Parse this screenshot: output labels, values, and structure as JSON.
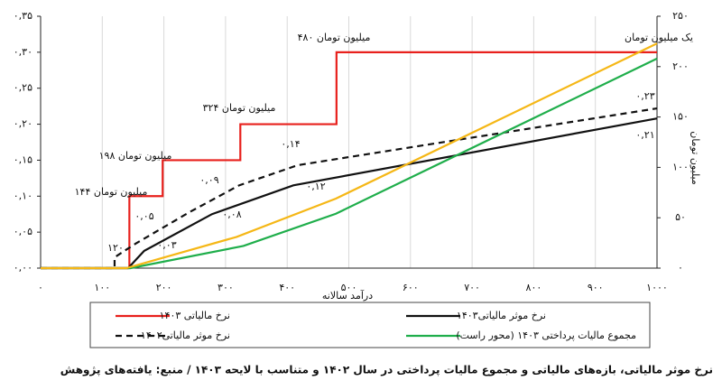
{
  "chart_data": {
    "type": "line",
    "xlabel": "درآمد سالانه",
    "y2label": "میلیون تومان",
    "caption": "نرخ موثر مالیاتی، بازه‌های مالیاتی و مجموع مالیات پرداختی در سال ۱۴۰۲ و متناسب با لایحه ۱۴۰۳ / منبع: یافته‌های پژوهش",
    "xlim": [
      0,
      1000
    ],
    "xticks": [
      {
        "value": 0,
        "label": "۰"
      },
      {
        "value": 100,
        "label": "۱۰۰"
      },
      {
        "value": 200,
        "label": "۲۰۰"
      },
      {
        "value": 300,
        "label": "۳۰۰"
      },
      {
        "value": 400,
        "label": "۴۰۰"
      },
      {
        "value": 500,
        "label": "۵۰۰"
      },
      {
        "value": 600,
        "label": "۶۰۰"
      },
      {
        "value": 700,
        "label": "۷۰۰"
      },
      {
        "value": 800,
        "label": "۸۰۰"
      },
      {
        "value": 900,
        "label": "۹۰۰"
      },
      {
        "value": 1000,
        "label": "۱۰۰۰"
      }
    ],
    "ylim": [
      0,
      0.35
    ],
    "yticks": [
      {
        "value": 0,
        "label": "۰,۰۰"
      },
      {
        "value": 0.05,
        "label": "۰,۰۵"
      },
      {
        "value": 0.1,
        "label": "۰,۱۰"
      },
      {
        "value": 0.15,
        "label": "۰,۱۵"
      },
      {
        "value": 0.2,
        "label": "۰,۲۰"
      },
      {
        "value": 0.25,
        "label": "۰,۲۵"
      },
      {
        "value": 0.3,
        "label": "۰,۳۰"
      },
      {
        "value": 0.35,
        "label": "۰,۳۵"
      }
    ],
    "y2lim": [
      0,
      250
    ],
    "y2ticks": [
      {
        "value": 0,
        "label": "۰"
      },
      {
        "value": 50,
        "label": "۵۰"
      },
      {
        "value": 100,
        "label": "۱۰۰"
      },
      {
        "value": 150,
        "label": "۱۵۰"
      },
      {
        "value": 200,
        "label": "۲۰۰"
      },
      {
        "value": 250,
        "label": "۲۵۰"
      }
    ],
    "grid": true,
    "series": [
      {
        "name": "نرخ مالیاتی ۱۴۰۳",
        "color": "#e8201c",
        "dash": false,
        "x": [
          0,
          144,
          144,
          198,
          198,
          324,
          324,
          480,
          480,
          1000
        ],
        "values": [
          0,
          0,
          0.1,
          0.1,
          0.15,
          0.15,
          0.2,
          0.2,
          0.3,
          0.3
        ]
      },
      {
        "name": "نرخ موثر مالیاتی۱۴۰۳",
        "color": "#111111",
        "dash": false,
        "x": [
          0,
          142,
          168,
          278,
          410,
          1000
        ],
        "values": [
          0,
          0,
          0.024,
          0.075,
          0.115,
          0.208
        ]
      },
      {
        "name": "نرخ موثر مالیاتی۱۴۰۲",
        "color": "#111111",
        "dash": true,
        "x": [
          0,
          120,
          120,
          154,
          242,
          322,
          417,
          1000
        ],
        "values": [
          0,
          0,
          0.015,
          0.034,
          0.078,
          0.115,
          0.143,
          0.222
        ]
      },
      {
        "name": "مجموع مالیات پرداختی ۱۴۰۳ (محور راست)",
        "color": "#1fae4b",
        "dash": false,
        "axis": "y2",
        "x": [
          0,
          146,
          329,
          479,
          1000
        ],
        "values": [
          0,
          0,
          22,
          54,
          208
        ]
      },
      {
        "color": "#f5b716",
        "dash": false,
        "axis": "y2",
        "x": [
          0,
          139,
          318,
          479,
          1000
        ],
        "values": [
          0,
          0,
          31,
          69,
          223
        ]
      }
    ],
    "annotations": [
      "۴۸۰ میلیون تومان",
      "۳۲۴ میلیون تومان",
      "۱۹۸ میلیون تومان",
      "۱۴۴ میلیون تومان",
      "یک میلیون تومان",
      "۰,۰۵",
      "۰,۰۹",
      "۰,۱۴",
      "۰,۲۳",
      "۰,۰۳",
      "۰,۰۸",
      "۰,۱۲",
      "۰,۲۱",
      "۱۲۰"
    ]
  }
}
